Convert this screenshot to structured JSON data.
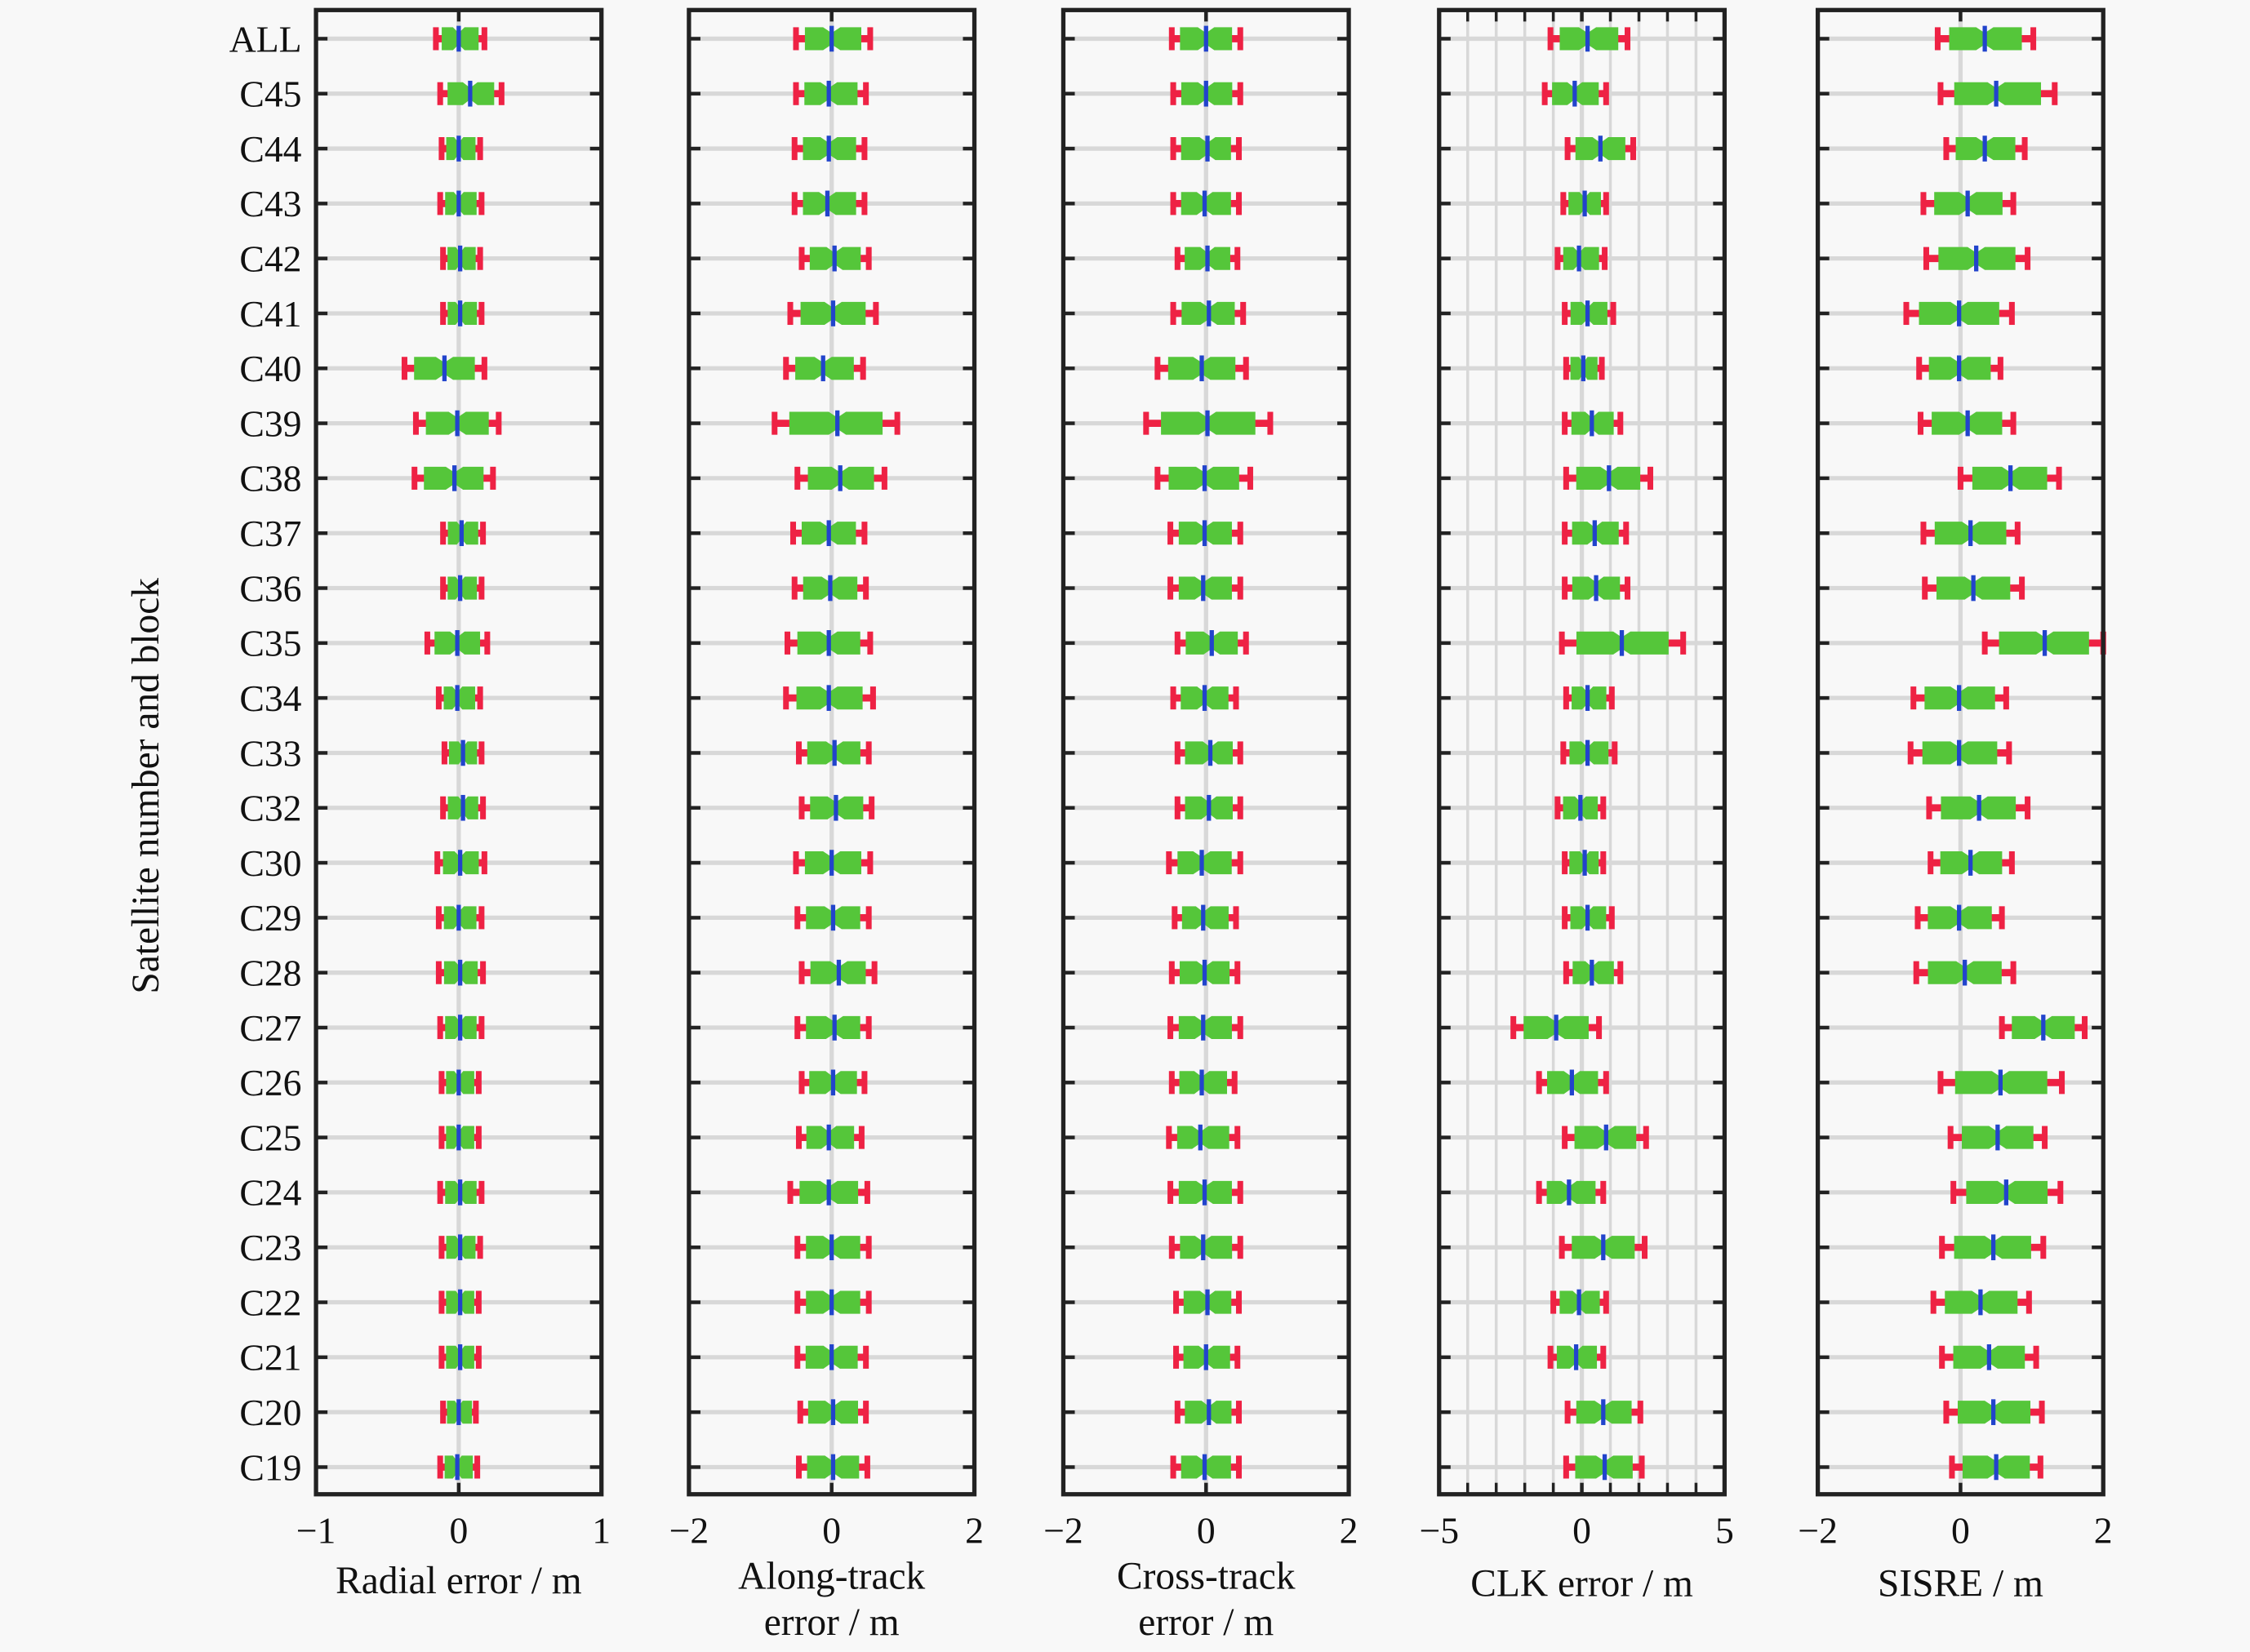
{
  "chart_data": {
    "type": "box",
    "ylabel": "Satellite number and block",
    "categories": [
      "ALL",
      "C45",
      "C44",
      "C43",
      "C42",
      "C41",
      "C40",
      "C39",
      "C38",
      "C37",
      "C36",
      "C35",
      "C34",
      "C33",
      "C32",
      "C30",
      "C29",
      "C28",
      "C27",
      "C26",
      "C25",
      "C24",
      "C23",
      "C22",
      "C21",
      "C20",
      "C19"
    ],
    "value_fields": [
      "lower",
      "median",
      "upper"
    ],
    "colors": {
      "whisker": "#ee2244",
      "box": "#55c63a",
      "median": "#2244cc",
      "grid": "#d8d8d8",
      "axis": "#222222"
    },
    "panels": [
      {
        "xlabel_lines": [
          "Radial error / m"
        ],
        "xlim": [
          -1,
          1
        ],
        "xticks": [
          -1,
          0,
          1
        ],
        "xtick_labels": [
          "−1",
          "0",
          "1"
        ],
        "minor_grid": false,
        "values": [
          [
            -0.16,
            0.0,
            0.18
          ],
          [
            -0.13,
            0.08,
            0.3
          ],
          [
            -0.12,
            0.0,
            0.15
          ],
          [
            -0.13,
            0.0,
            0.16
          ],
          [
            -0.11,
            0.01,
            0.15
          ],
          [
            -0.11,
            0.01,
            0.16
          ],
          [
            -0.38,
            -0.1,
            0.18
          ],
          [
            -0.3,
            -0.01,
            0.28
          ],
          [
            -0.31,
            -0.03,
            0.24
          ],
          [
            -0.11,
            0.02,
            0.17
          ],
          [
            -0.11,
            0.01,
            0.16
          ],
          [
            -0.22,
            -0.01,
            0.2
          ],
          [
            -0.14,
            -0.01,
            0.15
          ],
          [
            -0.1,
            0.03,
            0.16
          ],
          [
            -0.11,
            0.03,
            0.17
          ],
          [
            -0.15,
            0.01,
            0.18
          ],
          [
            -0.14,
            0.0,
            0.16
          ],
          [
            -0.14,
            0.01,
            0.17
          ],
          [
            -0.13,
            0.01,
            0.16
          ],
          [
            -0.12,
            0.0,
            0.14
          ],
          [
            -0.12,
            0.0,
            0.14
          ],
          [
            -0.13,
            0.01,
            0.16
          ],
          [
            -0.12,
            0.01,
            0.15
          ],
          [
            -0.12,
            0.01,
            0.14
          ],
          [
            -0.12,
            0.01,
            0.14
          ],
          [
            -0.11,
            0.0,
            0.12
          ],
          [
            -0.13,
            -0.01,
            0.13
          ]
        ]
      },
      {
        "xlabel_lines": [
          "Along-track",
          "error / m"
        ],
        "xlim": [
          -2,
          2
        ],
        "xticks": [
          -2,
          0,
          2
        ],
        "xtick_labels": [
          "−2",
          "0",
          "2"
        ],
        "minor_grid": false,
        "values": [
          [
            -0.5,
            0.0,
            0.54
          ],
          [
            -0.5,
            -0.04,
            0.48
          ],
          [
            -0.52,
            -0.04,
            0.46
          ],
          [
            -0.52,
            -0.06,
            0.46
          ],
          [
            -0.42,
            0.04,
            0.52
          ],
          [
            -0.58,
            0.02,
            0.62
          ],
          [
            -0.64,
            -0.12,
            0.44
          ],
          [
            -0.8,
            0.08,
            0.92
          ],
          [
            -0.48,
            0.12,
            0.74
          ],
          [
            -0.54,
            -0.04,
            0.46
          ],
          [
            -0.52,
            -0.02,
            0.48
          ],
          [
            -0.62,
            -0.04,
            0.54
          ],
          [
            -0.64,
            -0.04,
            0.58
          ],
          [
            -0.46,
            0.04,
            0.52
          ],
          [
            -0.42,
            0.06,
            0.56
          ],
          [
            -0.5,
            0.0,
            0.54
          ],
          [
            -0.48,
            0.02,
            0.52
          ],
          [
            -0.42,
            0.1,
            0.6
          ],
          [
            -0.48,
            0.04,
            0.52
          ],
          [
            -0.42,
            0.02,
            0.46
          ],
          [
            -0.46,
            -0.04,
            0.42
          ],
          [
            -0.58,
            -0.04,
            0.5
          ],
          [
            -0.48,
            0.0,
            0.52
          ],
          [
            -0.48,
            0.0,
            0.52
          ],
          [
            -0.48,
            0.0,
            0.48
          ],
          [
            -0.44,
            0.02,
            0.48
          ],
          [
            -0.46,
            0.02,
            0.5
          ]
        ]
      },
      {
        "xlabel_lines": [
          "Cross-track",
          "error / m"
        ],
        "xlim": [
          -2,
          2
        ],
        "xticks": [
          -2,
          0,
          2
        ],
        "xtick_labels": [
          "−2",
          "0",
          "2"
        ],
        "minor_grid": false,
        "values": [
          [
            -0.48,
            0.0,
            0.48
          ],
          [
            -0.46,
            0.0,
            0.48
          ],
          [
            -0.46,
            0.02,
            0.46
          ],
          [
            -0.46,
            -0.02,
            0.46
          ],
          [
            -0.4,
            0.02,
            0.44
          ],
          [
            -0.46,
            0.04,
            0.52
          ],
          [
            -0.68,
            -0.06,
            0.56
          ],
          [
            -0.84,
            0.02,
            0.9
          ],
          [
            -0.68,
            -0.02,
            0.62
          ],
          [
            -0.5,
            -0.02,
            0.48
          ],
          [
            -0.5,
            -0.04,
            0.48
          ],
          [
            -0.4,
            0.08,
            0.56
          ],
          [
            -0.46,
            -0.02,
            0.42
          ],
          [
            -0.4,
            0.06,
            0.48
          ],
          [
            -0.4,
            0.04,
            0.48
          ],
          [
            -0.52,
            -0.06,
            0.48
          ],
          [
            -0.44,
            -0.04,
            0.42
          ],
          [
            -0.48,
            -0.02,
            0.44
          ],
          [
            -0.5,
            -0.04,
            0.48
          ],
          [
            -0.48,
            -0.06,
            0.4
          ],
          [
            -0.52,
            -0.08,
            0.44
          ],
          [
            -0.5,
            -0.02,
            0.48
          ],
          [
            -0.48,
            -0.04,
            0.48
          ],
          [
            -0.42,
            0.02,
            0.46
          ],
          [
            -0.42,
            0.0,
            0.44
          ],
          [
            -0.4,
            0.04,
            0.46
          ],
          [
            -0.46,
            -0.02,
            0.46
          ]
        ]
      },
      {
        "xlabel_lines": [
          "CLK error / m"
        ],
        "xlim": [
          -5,
          5
        ],
        "xticks": [
          -5,
          0,
          5
        ],
        "xtick_labels": [
          "−5",
          "0",
          "5"
        ],
        "minor_grid": true,
        "minor_step": 1,
        "values": [
          [
            -1.1,
            0.2,
            1.6
          ],
          [
            -1.3,
            -0.25,
            0.85
          ],
          [
            -0.5,
            0.65,
            1.8
          ],
          [
            -0.65,
            0.1,
            0.85
          ],
          [
            -0.85,
            -0.1,
            0.8
          ],
          [
            -0.6,
            0.2,
            1.1
          ],
          [
            -0.55,
            0.05,
            0.7
          ],
          [
            -0.6,
            0.35,
            1.35
          ],
          [
            -0.55,
            0.95,
            2.4
          ],
          [
            -0.6,
            0.45,
            1.55
          ],
          [
            -0.6,
            0.5,
            1.6
          ],
          [
            -0.7,
            1.4,
            3.55
          ],
          [
            -0.55,
            0.2,
            1.05
          ],
          [
            -0.65,
            0.2,
            1.15
          ],
          [
            -0.85,
            -0.05,
            0.75
          ],
          [
            -0.6,
            0.1,
            0.75
          ],
          [
            -0.6,
            0.2,
            1.05
          ],
          [
            -0.55,
            0.35,
            1.35
          ],
          [
            -2.4,
            -0.9,
            0.6
          ],
          [
            -1.5,
            -0.35,
            0.85
          ],
          [
            -0.6,
            0.85,
            2.25
          ],
          [
            -1.5,
            -0.45,
            0.75
          ],
          [
            -0.7,
            0.75,
            2.2
          ],
          [
            -1.0,
            -0.1,
            0.85
          ],
          [
            -1.1,
            -0.2,
            0.75
          ],
          [
            -0.5,
            0.75,
            2.05
          ],
          [
            -0.55,
            0.8,
            2.1
          ]
        ]
      },
      {
        "xlabel_lines": [
          "SISRE / m"
        ],
        "xlim": [
          -2,
          2
        ],
        "xticks": [
          -2,
          0,
          2
        ],
        "xtick_labels": [
          "−2",
          "0",
          "2"
        ],
        "minor_grid": false,
        "values": [
          [
            -0.32,
            0.34,
            1.02
          ],
          [
            -0.28,
            0.5,
            1.32
          ],
          [
            -0.2,
            0.34,
            0.9
          ],
          [
            -0.52,
            0.1,
            0.74
          ],
          [
            -0.48,
            0.22,
            0.94
          ],
          [
            -0.76,
            -0.02,
            0.72
          ],
          [
            -0.58,
            -0.02,
            0.56
          ],
          [
            -0.56,
            0.1,
            0.74
          ],
          [
            0.0,
            0.7,
            1.38
          ],
          [
            -0.52,
            0.14,
            0.8
          ],
          [
            -0.5,
            0.18,
            0.86
          ],
          [
            0.34,
            1.18,
            2.0
          ],
          [
            -0.66,
            -0.02,
            0.64
          ],
          [
            -0.7,
            -0.02,
            0.68
          ],
          [
            -0.44,
            0.26,
            0.94
          ],
          [
            -0.42,
            0.14,
            0.72
          ],
          [
            -0.6,
            -0.02,
            0.58
          ],
          [
            -0.62,
            0.06,
            0.74
          ],
          [
            0.58,
            1.16,
            1.74
          ],
          [
            -0.28,
            0.56,
            1.42
          ],
          [
            -0.14,
            0.52,
            1.18
          ],
          [
            -0.1,
            0.64,
            1.4
          ],
          [
            -0.26,
            0.46,
            1.16
          ],
          [
            -0.38,
            0.28,
            0.96
          ],
          [
            -0.26,
            0.4,
            1.06
          ],
          [
            -0.2,
            0.46,
            1.14
          ],
          [
            -0.12,
            0.5,
            1.12
          ]
        ]
      }
    ]
  }
}
